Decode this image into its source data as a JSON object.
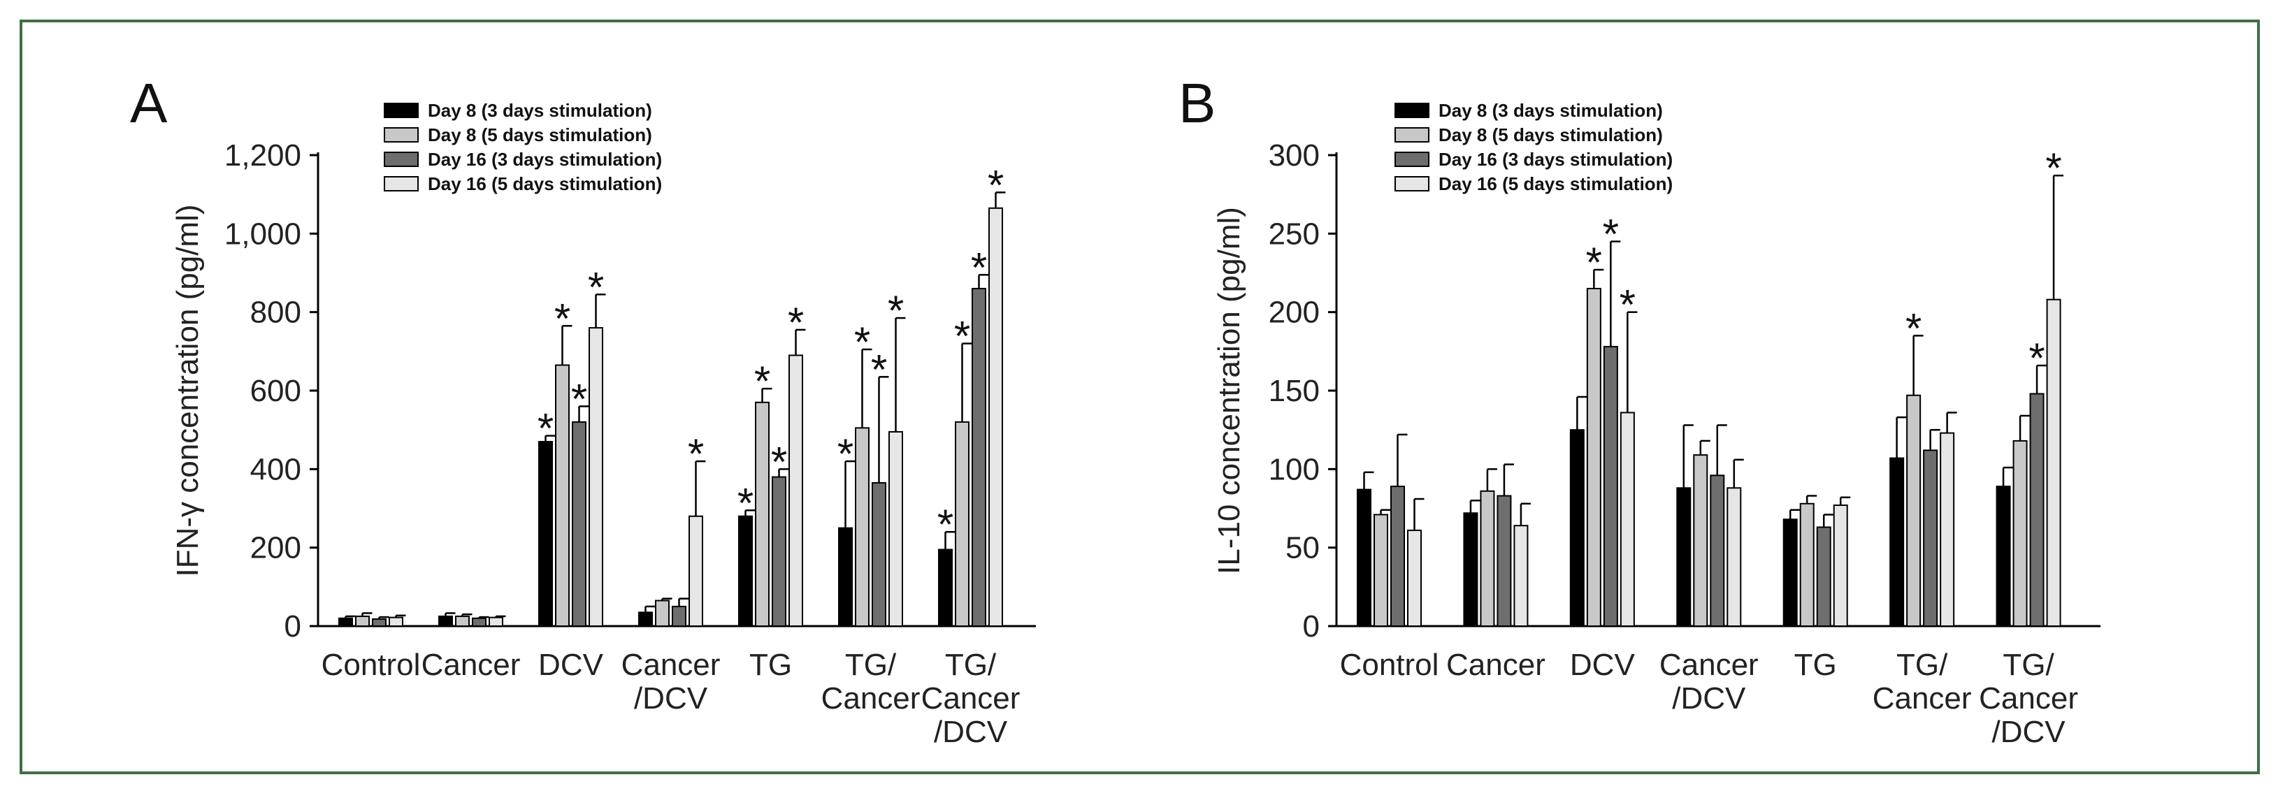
{
  "series_colors": [
    "#000000",
    "#c8c8c8",
    "#6e6e6e",
    "#e6e6e6"
  ],
  "chart_data": [
    {
      "type": "bar",
      "panel": "A",
      "ylabel": "IFN-γ concentration (pg/ml)",
      "ylim": [
        0,
        1200
      ],
      "yticks": [
        0,
        200,
        400,
        600,
        800,
        1000,
        1200
      ],
      "ytick_labels": [
        "0",
        "200",
        "400",
        "600",
        "800",
        "1,000",
        "1,200"
      ],
      "categories": [
        [
          "Control"
        ],
        [
          "Cancer"
        ],
        [
          "DCV"
        ],
        [
          "Cancer",
          "/DCV"
        ],
        [
          "TG"
        ],
        [
          "TG/",
          "Cancer"
        ],
        [
          "TG/",
          "Cancer",
          "/DCV"
        ]
      ],
      "legend": [
        "Day 8 (3 days stimulation)",
        "Day 8 (5 days stimulation)",
        "Day 16 (3 days stimulation)",
        "Day 16 (5 days stimulation)"
      ],
      "series": [
        {
          "name": "Day 8 (3 days stimulation)",
          "values": [
            20,
            25,
            470,
            35,
            280,
            250,
            195
          ],
          "errors": [
            5,
            8,
            15,
            15,
            15,
            170,
            45
          ],
          "stars": [
            false,
            false,
            true,
            false,
            true,
            true,
            true
          ]
        },
        {
          "name": "Day 8 (5 days stimulation)",
          "values": [
            25,
            25,
            665,
            65,
            570,
            505,
            520
          ],
          "errors": [
            8,
            5,
            100,
            5,
            35,
            200,
            200
          ],
          "stars": [
            false,
            false,
            true,
            false,
            true,
            true,
            true
          ]
        },
        {
          "name": "Day 16 (3 days stimulation)",
          "values": [
            18,
            20,
            520,
            50,
            380,
            365,
            860
          ],
          "errors": [
            5,
            3,
            40,
            20,
            20,
            270,
            35
          ],
          "stars": [
            false,
            false,
            true,
            false,
            true,
            true,
            true
          ]
        },
        {
          "name": "Day 16 (5 days stimulation)",
          "values": [
            22,
            22,
            760,
            280,
            690,
            495,
            1065
          ],
          "errors": [
            5,
            3,
            85,
            140,
            65,
            290,
            40
          ],
          "stars": [
            false,
            false,
            true,
            true,
            true,
            true,
            true
          ]
        }
      ],
      "star_symbol": "*"
    },
    {
      "type": "bar",
      "panel": "B",
      "ylabel": "IL-10 concentration (pg/ml)",
      "ylim": [
        0,
        300
      ],
      "yticks": [
        0,
        50,
        100,
        150,
        200,
        250,
        300
      ],
      "ytick_labels": [
        "0",
        "50",
        "100",
        "150",
        "200",
        "250",
        "300"
      ],
      "categories": [
        [
          "Control"
        ],
        [
          "Cancer"
        ],
        [
          "DCV"
        ],
        [
          "Cancer",
          "/DCV"
        ],
        [
          "TG"
        ],
        [
          "TG/",
          "Cancer"
        ],
        [
          "TG/",
          "Cancer",
          "/DCV"
        ]
      ],
      "legend": [
        "Day 8 (3 days stimulation)",
        "Day 8 (5 days stimulation)",
        "Day 16 (3 days stimulation)",
        "Day 16 (5 days stimulation)"
      ],
      "series": [
        {
          "name": "Day 8 (3 days stimulation)",
          "values": [
            87,
            72,
            125,
            88,
            68,
            107,
            89
          ],
          "errors": [
            11,
            8,
            21,
            40,
            6,
            26,
            12
          ],
          "stars": [
            false,
            false,
            false,
            false,
            false,
            false,
            false
          ]
        },
        {
          "name": "Day 8 (5 days stimulation)",
          "values": [
            71,
            86,
            215,
            109,
            78,
            147,
            118
          ],
          "errors": [
            3,
            14,
            12,
            9,
            5,
            38,
            16
          ],
          "stars": [
            false,
            false,
            true,
            false,
            false,
            true,
            false
          ]
        },
        {
          "name": "Day 16 (3 days stimulation)",
          "values": [
            89,
            83,
            178,
            96,
            63,
            112,
            148
          ],
          "errors": [
            33,
            20,
            67,
            32,
            8,
            13,
            18
          ],
          "stars": [
            false,
            false,
            true,
            false,
            false,
            false,
            true
          ]
        },
        {
          "name": "Day 16 (5 days stimulation)",
          "values": [
            61,
            64,
            136,
            88,
            77,
            123,
            208
          ],
          "errors": [
            20,
            14,
            64,
            18,
            5,
            13,
            79
          ],
          "stars": [
            false,
            false,
            true,
            false,
            false,
            false,
            true
          ]
        }
      ],
      "star_symbol": "*"
    }
  ]
}
